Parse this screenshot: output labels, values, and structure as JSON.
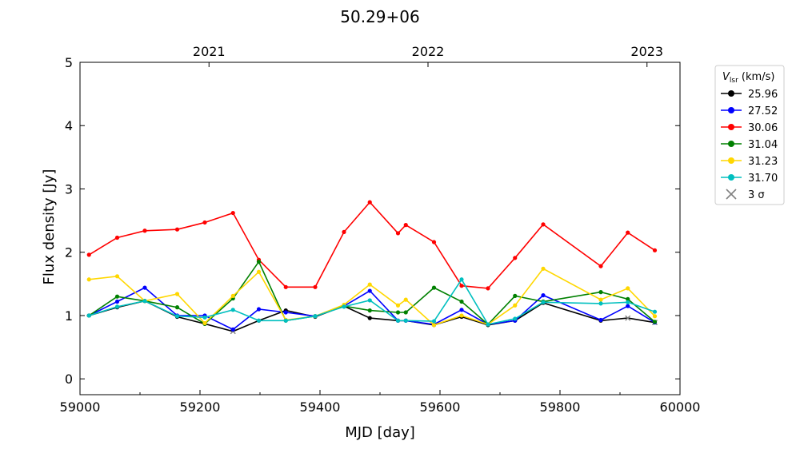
{
  "chart_data": {
    "type": "line",
    "title": "50.29+06",
    "xlabel": "MJD [day]",
    "ylabel": "Flux density [Jy]",
    "xlim": [
      59000,
      60000
    ],
    "ylim": [
      -0.25,
      5
    ],
    "x_ticks": [
      "59000",
      "59200",
      "59400",
      "59600",
      "59800",
      "60000"
    ],
    "y_ticks": [
      "0",
      "1",
      "2",
      "3",
      "4",
      "5"
    ],
    "top_axis_ticks": [
      {
        "label": "2021",
        "mjd": 59215
      },
      {
        "label": "2022",
        "mjd": 59580
      },
      {
        "label": "2023",
        "mjd": 59945
      }
    ],
    "legend": {
      "title_main": "V",
      "title_sub": "lsr",
      "title_unit": " (km/s)",
      "position": "outside-right",
      "sigma_label": "3 σ"
    },
    "upper_limit_color": "#808080",
    "series": [
      {
        "name": "25.96",
        "color": "#000000",
        "points": [
          [
            59015,
            1.0
          ],
          [
            59062,
            1.13
          ],
          [
            59108,
            1.23
          ],
          [
            59162,
            0.98
          ],
          [
            59208,
            0.87
          ],
          [
            59255,
            0.75
          ],
          [
            59298,
            0.92
          ],
          [
            59343,
            1.08
          ],
          [
            59392,
            0.98
          ],
          [
            59440,
            1.15
          ],
          [
            59483,
            0.96
          ],
          [
            59530,
            0.92
          ],
          [
            59543,
            0.92
          ],
          [
            59590,
            0.85
          ],
          [
            59636,
            0.98
          ],
          [
            59680,
            0.85
          ],
          [
            59725,
            0.92
          ],
          [
            59772,
            1.2
          ],
          [
            59868,
            0.92
          ],
          [
            59913,
            0.96
          ],
          [
            59958,
            0.89
          ]
        ],
        "upper_limits": [
          59255,
          59913,
          59958
        ]
      },
      {
        "name": "27.52",
        "color": "#0000ff",
        "points": [
          [
            59015,
            1.0
          ],
          [
            59062,
            1.22
          ],
          [
            59108,
            1.44
          ],
          [
            59162,
            1.0
          ],
          [
            59208,
            1.0
          ],
          [
            59255,
            0.78
          ],
          [
            59298,
            1.1
          ],
          [
            59343,
            1.05
          ],
          [
            59392,
            0.99
          ],
          [
            59440,
            1.15
          ],
          [
            59483,
            1.39
          ],
          [
            59530,
            0.92
          ],
          [
            59543,
            0.92
          ],
          [
            59590,
            0.86
          ],
          [
            59636,
            1.09
          ],
          [
            59680,
            0.86
          ],
          [
            59725,
            0.92
          ],
          [
            59772,
            1.32
          ],
          [
            59868,
            0.93
          ],
          [
            59913,
            1.15
          ],
          [
            59958,
            0.89
          ]
        ],
        "upper_limits": []
      },
      {
        "name": "30.06",
        "color": "#ff0000",
        "points": [
          [
            59015,
            1.96
          ],
          [
            59062,
            2.23
          ],
          [
            59108,
            2.34
          ],
          [
            59162,
            2.36
          ],
          [
            59208,
            2.47
          ],
          [
            59255,
            2.62
          ],
          [
            59298,
            1.88
          ],
          [
            59343,
            1.45
          ],
          [
            59392,
            1.45
          ],
          [
            59440,
            2.32
          ],
          [
            59483,
            2.79
          ],
          [
            59530,
            2.3
          ],
          [
            59543,
            2.43
          ],
          [
            59590,
            2.16
          ],
          [
            59636,
            1.47
          ],
          [
            59680,
            1.43
          ],
          [
            59725,
            1.91
          ],
          [
            59772,
            2.44
          ],
          [
            59868,
            1.78
          ],
          [
            59913,
            2.31
          ],
          [
            59958,
            2.03
          ]
        ],
        "upper_limits": []
      },
      {
        "name": "31.04",
        "color": "#008000",
        "points": [
          [
            59015,
            1.0
          ],
          [
            59062,
            1.3
          ],
          [
            59108,
            1.23
          ],
          [
            59162,
            1.13
          ],
          [
            59208,
            0.87
          ],
          [
            59255,
            1.27
          ],
          [
            59298,
            1.85
          ],
          [
            59343,
            0.92
          ],
          [
            59392,
            0.99
          ],
          [
            59440,
            1.15
          ],
          [
            59483,
            1.08
          ],
          [
            59530,
            1.05
          ],
          [
            59543,
            1.05
          ],
          [
            59590,
            1.44
          ],
          [
            59636,
            1.22
          ],
          [
            59680,
            0.86
          ],
          [
            59725,
            1.31
          ],
          [
            59772,
            1.22
          ],
          [
            59868,
            1.37
          ],
          [
            59913,
            1.26
          ],
          [
            59958,
            0.9
          ]
        ],
        "upper_limits": []
      },
      {
        "name": "31.23",
        "color": "#ffd700",
        "points": [
          [
            59015,
            1.57
          ],
          [
            59062,
            1.62
          ],
          [
            59108,
            1.23
          ],
          [
            59162,
            1.34
          ],
          [
            59208,
            0.88
          ],
          [
            59255,
            1.31
          ],
          [
            59298,
            1.69
          ],
          [
            59343,
            0.93
          ],
          [
            59392,
            0.99
          ],
          [
            59440,
            1.17
          ],
          [
            59483,
            1.49
          ],
          [
            59530,
            1.16
          ],
          [
            59543,
            1.25
          ],
          [
            59590,
            0.85
          ],
          [
            59636,
            1.0
          ],
          [
            59680,
            0.86
          ],
          [
            59725,
            1.16
          ],
          [
            59772,
            1.74
          ],
          [
            59868,
            1.25
          ],
          [
            59913,
            1.43
          ],
          [
            59958,
            0.99
          ]
        ],
        "upper_limits": []
      },
      {
        "name": "31.70",
        "color": "#00bfbf",
        "points": [
          [
            59015,
            1.0
          ],
          [
            59062,
            1.14
          ],
          [
            59108,
            1.23
          ],
          [
            59162,
            0.99
          ],
          [
            59208,
            0.97
          ],
          [
            59255,
            1.09
          ],
          [
            59298,
            0.92
          ],
          [
            59343,
            0.92
          ],
          [
            59392,
            0.99
          ],
          [
            59440,
            1.14
          ],
          [
            59483,
            1.24
          ],
          [
            59530,
            0.92
          ],
          [
            59543,
            0.92
          ],
          [
            59590,
            0.91
          ],
          [
            59636,
            1.57
          ],
          [
            59680,
            0.86
          ],
          [
            59725,
            0.95
          ],
          [
            59772,
            1.21
          ],
          [
            59868,
            1.19
          ],
          [
            59913,
            1.21
          ],
          [
            59958,
            1.06
          ]
        ],
        "upper_limits": []
      }
    ]
  }
}
